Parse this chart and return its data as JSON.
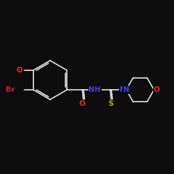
{
  "background": "#0d0d0d",
  "bond_color": "#e8e8e8",
  "atom_colors": {
    "O": "#ff2020",
    "N": "#4040ff",
    "S": "#ccaa00",
    "Br": "#cc2020",
    "C": "#e8e8e8"
  },
  "font_size": 7.5,
  "bond_lw": 1.2
}
